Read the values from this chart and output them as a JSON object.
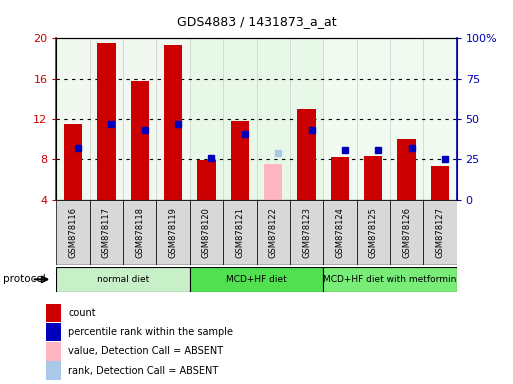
{
  "title": "GDS4883 / 1431873_a_at",
  "samples": [
    "GSM878116",
    "GSM878117",
    "GSM878118",
    "GSM878119",
    "GSM878120",
    "GSM878121",
    "GSM878122",
    "GSM878123",
    "GSM878124",
    "GSM878125",
    "GSM878126",
    "GSM878127"
  ],
  "count_values": [
    11.5,
    19.5,
    15.8,
    19.3,
    7.9,
    11.8,
    7.5,
    13.0,
    8.2,
    8.3,
    10.0,
    7.3
  ],
  "count_colors": [
    "#cc0000",
    "#cc0000",
    "#cc0000",
    "#cc0000",
    "#cc0000",
    "#cc0000",
    "#ffb6c1",
    "#cc0000",
    "#cc0000",
    "#cc0000",
    "#cc0000",
    "#cc0000"
  ],
  "percentile_values_pct": [
    32,
    47,
    43,
    47,
    26,
    41,
    29,
    43,
    31,
    31,
    32,
    25
  ],
  "percentile_colors": [
    "#0000bb",
    "#0000bb",
    "#0000bb",
    "#0000bb",
    "#0000bb",
    "#0000bb",
    "#aac8e8",
    "#0000bb",
    "#0000bb",
    "#0000bb",
    "#0000bb",
    "#0000bb"
  ],
  "ylim_left": [
    4,
    20
  ],
  "ylim_right": [
    0,
    100
  ],
  "yticks_left": [
    4,
    8,
    12,
    16,
    20
  ],
  "yticks_right": [
    0,
    25,
    50,
    75,
    100
  ],
  "ytick_labels_right": [
    "0",
    "25",
    "50",
    "75",
    "100%"
  ],
  "groups": [
    {
      "label": "normal diet",
      "start": 0,
      "end": 3
    },
    {
      "label": "MCD+HF diet",
      "start": 4,
      "end": 7
    },
    {
      "label": "MCD+HF diet with metformin",
      "start": 8,
      "end": 11
    }
  ],
  "group_fill_colors": [
    "#c8f0c8",
    "#50e050",
    "#78ee78"
  ],
  "bar_width": 0.55,
  "legend_items": [
    {
      "label": "count",
      "color": "#cc0000"
    },
    {
      "label": "percentile rank within the sample",
      "color": "#0000bb"
    },
    {
      "label": "value, Detection Call = ABSENT",
      "color": "#ffb6c1"
    },
    {
      "label": "rank, Detection Call = ABSENT",
      "color": "#aac8e8"
    }
  ],
  "protocol_label": "protocol",
  "left_tick_color": "#cc0000",
  "right_tick_color": "#0000bb",
  "plot_bg_color": "#f0f0f0"
}
